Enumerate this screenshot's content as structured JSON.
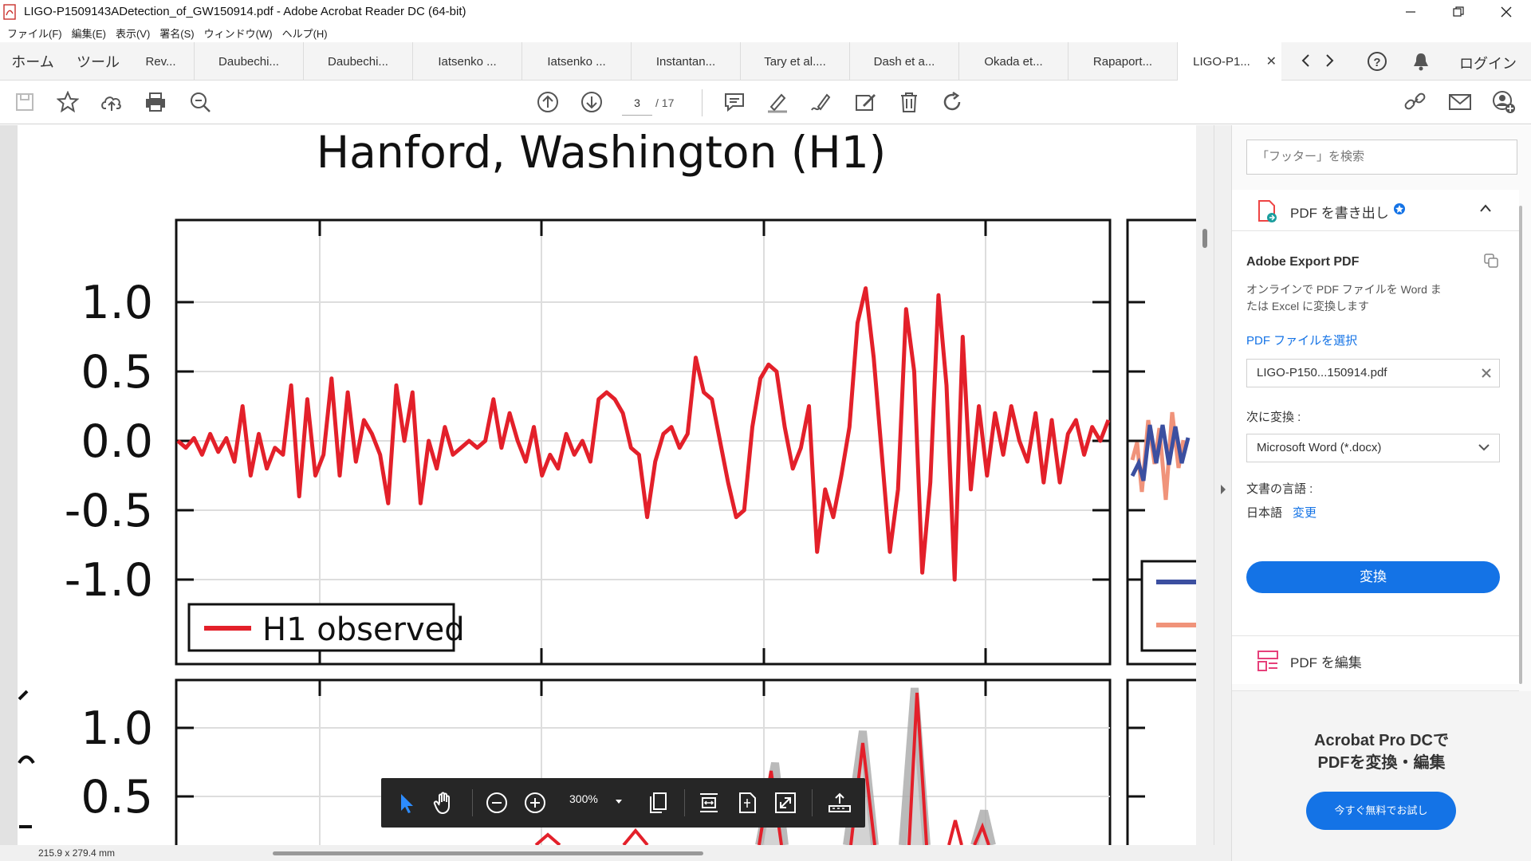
{
  "window": {
    "title": "LIGO-P1509143ADetection_of_GW150914.pdf - Adobe Acrobat Reader DC (64-bit)"
  },
  "menu": [
    "ファイル(F)",
    "編集(E)",
    "表示(V)",
    "署名(S)",
    "ウィンドウ(W)",
    "ヘルプ(H)"
  ],
  "nav": {
    "home": "ホーム",
    "tools": "ツール",
    "login": "ログイン"
  },
  "tabs": [
    {
      "label": "Rev..."
    },
    {
      "label": "Daubechi..."
    },
    {
      "label": "Daubechi..."
    },
    {
      "label": "Iatsenko ..."
    },
    {
      "label": "Iatsenko ..."
    },
    {
      "label": "Instantan..."
    },
    {
      "label": "Tary et al...."
    },
    {
      "label": "Dash et a..."
    },
    {
      "label": "Okada et..."
    },
    {
      "label": "Rapaport..."
    },
    {
      "label": "LIGO-P1...",
      "active": true
    }
  ],
  "toolbar": {
    "page_current": "3",
    "page_total": "/ 17"
  },
  "float_toolbar": {
    "zoom": "300%"
  },
  "status": {
    "page_size": "215.9 x 279.4 mm"
  },
  "right_panel": {
    "search_placeholder": "「フッター」を検索",
    "export_header": "PDF を書き出し",
    "export_title": "Adobe Export PDF",
    "export_desc_1": "オンラインで PDF ファイルを Word ま",
    "export_desc_2": "たは Excel に変換します",
    "select_file": "PDF ファイルを選択",
    "file_name": "LIGO-P150...150914.pdf",
    "convert_to_label": "次に変換 :",
    "convert_format": "Microsoft Word (*.docx)",
    "language_label": "文書の言語 :",
    "language_value": "日本語",
    "language_change": "変更",
    "convert_button": "変換",
    "edit_pdf": "PDF を編集",
    "promo_line1": "Acrobat Pro DCで",
    "promo_line2": "PDFを変換・編集",
    "promo_button": "今すぐ無料でお試し"
  },
  "chart_data": {
    "type": "line",
    "title": "Hanford, Washington (H1)",
    "ylabel": "",
    "ylim": [
      -1.5,
      1.5
    ],
    "yticks": [
      "1.0",
      "0.5",
      "0.0",
      "-0.5",
      "-1.0"
    ],
    "ytick_values": [
      1.0,
      0.5,
      0.0,
      -0.5,
      -1.0
    ],
    "lower_panel_yticks": [
      "1.0",
      "0.5"
    ],
    "grid": true,
    "legend": "bottom-left",
    "colors": {
      "h1": "#e3202a",
      "right_blue": "#3b4fa0",
      "right_orange": "#f0937a"
    },
    "series": [
      {
        "name": "H1 observed",
        "values": [
          0.0,
          -0.05,
          0.02,
          -0.1,
          0.05,
          -0.08,
          0.02,
          -0.15,
          0.25,
          -0.25,
          0.05,
          -0.2,
          -0.05,
          -0.1,
          0.4,
          -0.4,
          0.3,
          -0.25,
          -0.1,
          0.45,
          -0.25,
          0.35,
          -0.15,
          0.15,
          0.05,
          -0.1,
          -0.45,
          0.4,
          0.0,
          0.35,
          -0.45,
          0.0,
          -0.2,
          0.1,
          -0.1,
          -0.05,
          0.0,
          -0.05,
          0.0,
          0.3,
          -0.05,
          0.2,
          0.0,
          -0.15,
          0.1,
          -0.25,
          -0.1,
          -0.2,
          0.05,
          -0.1,
          0.0,
          -0.15,
          0.3,
          0.35,
          0.3,
          0.2,
          -0.05,
          -0.1,
          -0.55,
          -0.15,
          0.05,
          0.1,
          -0.05,
          0.05,
          0.6,
          0.35,
          0.3,
          0.0,
          -0.3,
          -0.55,
          -0.5,
          0.1,
          0.45,
          0.55,
          0.5,
          0.1,
          -0.2,
          -0.05,
          0.25,
          -0.8,
          -0.35,
          -0.55,
          -0.25,
          0.1,
          0.85,
          1.1,
          0.6,
          -0.1,
          -0.8,
          -0.35,
          0.95,
          0.5,
          -0.95,
          -0.3,
          1.05,
          0.4,
          -1.0,
          0.75,
          -0.35,
          0.25,
          -0.25,
          0.2,
          -0.1,
          0.25,
          0.0,
          -0.15,
          0.2,
          -0.3,
          0.15,
          -0.3,
          0.05,
          0.15,
          -0.1,
          0.1,
          0.0,
          0.15
        ]
      }
    ]
  }
}
